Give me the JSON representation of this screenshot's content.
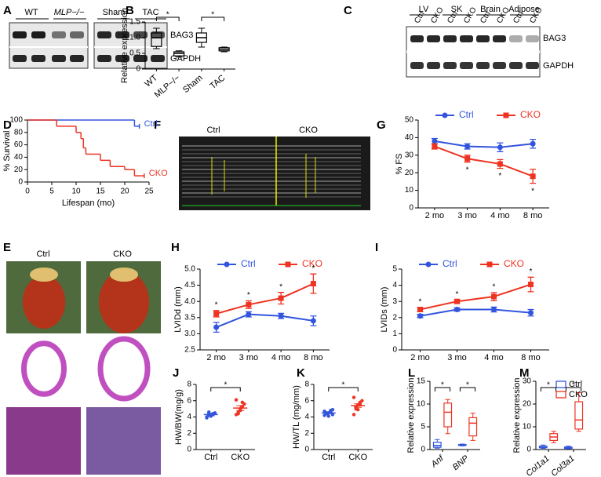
{
  "panel_letters": [
    "A",
    "B",
    "C",
    "D",
    "E",
    "F",
    "G",
    "H",
    "I",
    "J",
    "K",
    "L",
    "M"
  ],
  "blot_a": {
    "groups": [
      "WT",
      "MLP−/−",
      "Sham",
      "TAC"
    ],
    "proteins": [
      "BAG3",
      "GAPDH"
    ]
  },
  "blot_c": {
    "tissues": [
      "LV",
      "SK",
      "Brain",
      "Adipose"
    ],
    "lanes": [
      "Ctrl",
      "CKO",
      "Ctrl",
      "CKO",
      "Ctrl",
      "CKO",
      "Ctrl",
      "CKO"
    ],
    "proteins": [
      "BAG3",
      "GAPDH"
    ]
  },
  "echo_f": {
    "labels": [
      "Ctrl",
      "CKO"
    ]
  },
  "hearts_e": {
    "labels": [
      "Ctrl",
      "CKO"
    ]
  },
  "chart_data": [
    {
      "type": "box",
      "ylabel": "Relative expression",
      "categories": [
        "WT",
        "MLP−/−",
        "Sham",
        "TAC"
      ],
      "values": [
        [
          0.65,
          0.72,
          1.0,
          1.15,
          1.3
        ],
        [
          0.38,
          0.42,
          0.5,
          0.55,
          0.58
        ],
        [
          0.7,
          0.85,
          1.0,
          1.15,
          1.3
        ],
        [
          0.55,
          0.58,
          0.63,
          0.68,
          0.7
        ]
      ],
      "color": "#000000",
      "ylim": [
        0,
        1.5
      ],
      "yticks": [
        0,
        0.5,
        {
          "value": 1,
          "label": "1.0"
        },
        1.5
      ],
      "annotations": [
        "*",
        "*"
      ]
    },
    {
      "type": "step",
      "ylabel": "% Survival",
      "xlabel": "Lifespan (mo)",
      "xlim": [
        0,
        25
      ],
      "xticks": [
        0,
        5,
        10,
        15,
        20,
        25
      ],
      "ylim": [
        0,
        100
      ],
      "yticks": [
        0,
        20,
        40,
        60,
        80,
        100
      ],
      "series": [
        {
          "name": "Ctrl",
          "color": "#3355dd",
          "x": [
            0,
            22,
            23
          ],
          "values": [
            100,
            90,
            90
          ]
        },
        {
          "name": "CKO",
          "color": "#ee3322",
          "x": [
            0,
            6,
            10,
            11,
            11.5,
            12,
            13,
            15,
            17,
            20,
            22,
            24
          ],
          "values": [
            100,
            90,
            80,
            70,
            55,
            45,
            45,
            35,
            25,
            20,
            10,
            10
          ]
        }
      ]
    },
    {
      "type": "line",
      "ylabel": "% FS",
      "categories": [
        "2 mo",
        "3 mo",
        "4 mo",
        "8 mo"
      ],
      "ylim": [
        0,
        50
      ],
      "yticks": [
        0,
        10,
        20,
        30,
        40,
        50
      ],
      "legend": "top",
      "series": [
        {
          "name": "Ctrl",
          "color": "#3355dd",
          "marker": "circle",
          "values": [
            38,
            35,
            34.5,
            36.5
          ],
          "errors": [
            1.5,
            1.5,
            2.5,
            2.5
          ]
        },
        {
          "name": "CKO",
          "color": "#ee3322",
          "marker": "square",
          "values": [
            35,
            28,
            25,
            18
          ],
          "errors": [
            1.5,
            2,
            2.5,
            4
          ]
        }
      ],
      "annotations": [
        "*",
        "*",
        "*"
      ]
    },
    {
      "type": "line",
      "ylabel": "LVIDd (mm)",
      "categories": [
        "2 mo",
        "3 mo",
        "4 mo",
        "8 mo"
      ],
      "ylim": [
        2.5,
        5
      ],
      "yticks": [
        2.5,
        {
          "value": 3,
          "label": "3.0"
        },
        3.5,
        {
          "value": 4,
          "label": "4.0"
        },
        4.5,
        {
          "value": 5,
          "label": "5.0"
        }
      ],
      "legend": "top",
      "series": [
        {
          "name": "Ctrl",
          "color": "#3355dd",
          "marker": "circle",
          "values": [
            3.2,
            3.6,
            3.55,
            3.4
          ],
          "errors": [
            0.15,
            0.08,
            0.08,
            0.15
          ]
        },
        {
          "name": "CKO",
          "color": "#ee3322",
          "marker": "square",
          "values": [
            3.62,
            3.9,
            4.1,
            4.55
          ],
          "errors": [
            0.1,
            0.12,
            0.18,
            0.3
          ]
        }
      ],
      "annotations": [
        "*",
        "*",
        "*",
        "*"
      ]
    },
    {
      "type": "line",
      "ylabel": "LVIDs (mm)",
      "categories": [
        "2 mo",
        "3 mo",
        "4 mo",
        "8 mo"
      ],
      "ylim": [
        0,
        5
      ],
      "yticks": [
        0,
        1,
        2,
        3,
        4,
        5
      ],
      "legend": "top",
      "series": [
        {
          "name": "Ctrl",
          "color": "#3355dd",
          "marker": "circle",
          "values": [
            2.1,
            2.5,
            2.5,
            2.3
          ],
          "errors": [
            0.1,
            0.1,
            0.15,
            0.2
          ]
        },
        {
          "name": "CKO",
          "color": "#ee3322",
          "marker": "square",
          "values": [
            2.5,
            3.0,
            3.3,
            4.05
          ],
          "errors": [
            0.12,
            0.1,
            0.25,
            0.45
          ]
        }
      ],
      "annotations": [
        "*",
        "*",
        "*",
        "*"
      ]
    },
    {
      "type": "strip",
      "ylabel": "HW/BW(mg/g)",
      "categories": [
        "Ctrl",
        "CKO"
      ],
      "ylim": [
        0,
        8
      ],
      "yticks": [
        0,
        2,
        4,
        6,
        8
      ],
      "groups": [
        {
          "color": "#3355dd",
          "values": [
            4.0,
            4.2,
            4.3,
            4.4,
            4.5,
            3.9,
            4.6,
            4.1,
            4.3
          ],
          "mean": 4.3,
          "sem": 0.15
        },
        {
          "color": "#ee3322",
          "values": [
            4.3,
            4.6,
            5.0,
            5.3,
            5.6,
            6.1,
            4.4,
            4.8,
            5.8
          ],
          "mean": 5.1,
          "sem": 0.3
        }
      ],
      "annotations": [
        "*"
      ]
    },
    {
      "type": "strip",
      "ylabel": "HW/TL (mg/mm)",
      "categories": [
        "Ctrl",
        "CKO"
      ],
      "ylim": [
        0,
        8
      ],
      "yticks": [
        0,
        2,
        4,
        6,
        8
      ],
      "groups": [
        {
          "color": "#3355dd",
          "values": [
            4.2,
            4.4,
            4.5,
            4.6,
            4.3,
            4.7,
            4.5,
            4.1,
            4.8,
            4.9
          ],
          "mean": 4.5,
          "sem": 0.1
        },
        {
          "color": "#ee3322",
          "values": [
            4.3,
            5.0,
            5.5,
            5.8,
            6.0,
            6.4,
            5.2,
            4.9,
            5.5
          ],
          "mean": 5.4,
          "sem": 0.22
        }
      ],
      "annotations": [
        "*"
      ]
    },
    {
      "type": "box",
      "ylabel": "Relative expression",
      "categories": [
        "Anf",
        "BNP"
      ],
      "italic": true,
      "ylim": [
        0,
        15
      ],
      "yticks": [
        0,
        5,
        10,
        15
      ],
      "series": [
        {
          "name": "Ctrl",
          "color": "#3355dd",
          "values": [
            [
              0.3,
              0.5,
              0.9,
              1.6,
              2.2
            ],
            [
              0.8,
              0.9,
              1.0,
              1.1,
              1.2
            ]
          ]
        },
        {
          "name": "CKO",
          "color": "#ee3322",
          "values": [
            [
              3.5,
              5,
              8.2,
              10.2,
              11
            ],
            [
              2,
              3,
              5.8,
              7,
              8
            ]
          ]
        }
      ],
      "annotations": [
        "*",
        "*"
      ]
    },
    {
      "type": "box",
      "ylabel": "Relative expression",
      "categories": [
        "Col1a1",
        "Col3a1"
      ],
      "italic": true,
      "ylim": [
        0,
        30
      ],
      "yticks": [
        0,
        10,
        20,
        30
      ],
      "legend": "top-right",
      "series": [
        {
          "name": "Ctrl",
          "color": "#3355dd",
          "values": [
            [
              0.5,
              0.8,
              1,
              1.5,
              2
            ],
            [
              0.3,
              0.5,
              0.8,
              1.1,
              1.5
            ]
          ]
        },
        {
          "name": "CKO",
          "color": "#ee3322",
          "values": [
            [
              3,
              4,
              5.5,
              7,
              8
            ],
            [
              8,
              9,
              13,
              21,
              25
            ]
          ]
        }
      ],
      "annotations": [
        "*",
        "*"
      ]
    }
  ]
}
